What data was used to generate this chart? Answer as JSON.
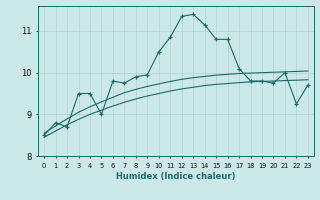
{
  "xlabel": "Humidex (Indice chaleur)",
  "ylabel": "",
  "bg_color": "#cce8e8",
  "line_color": "#1a6b6b",
  "grid_color": "#add4d4",
  "xlim": [
    -0.5,
    23.5
  ],
  "ylim": [
    8.0,
    11.6
  ],
  "yticks": [
    8,
    9,
    10,
    11
  ],
  "xticks": [
    0,
    1,
    2,
    3,
    4,
    5,
    6,
    7,
    8,
    9,
    10,
    11,
    12,
    13,
    14,
    15,
    16,
    17,
    18,
    19,
    20,
    21,
    22,
    23
  ],
  "main_line": [
    8.5,
    8.8,
    8.7,
    9.5,
    9.5,
    9.0,
    9.8,
    9.75,
    9.9,
    9.95,
    10.5,
    10.85,
    11.35,
    11.4,
    11.15,
    10.8,
    10.8,
    10.1,
    9.8,
    9.8,
    9.75,
    10.0,
    9.25,
    9.7
  ],
  "trend_line1": [
    8.55,
    8.72,
    8.89,
    9.05,
    9.18,
    9.3,
    9.41,
    9.52,
    9.6,
    9.67,
    9.73,
    9.79,
    9.84,
    9.88,
    9.91,
    9.94,
    9.96,
    9.98,
    9.99,
    10.0,
    10.01,
    10.02,
    10.03,
    10.04
  ],
  "trend_line2": [
    8.45,
    8.6,
    8.75,
    8.88,
    9.0,
    9.1,
    9.2,
    9.29,
    9.37,
    9.44,
    9.5,
    9.56,
    9.61,
    9.65,
    9.69,
    9.72,
    9.74,
    9.76,
    9.78,
    9.79,
    9.8,
    9.81,
    9.82,
    9.83
  ]
}
